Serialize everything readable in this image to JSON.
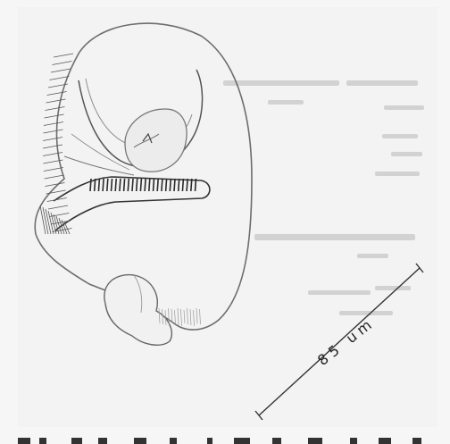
{
  "figure": {
    "scale_bar_label": "85 um"
  }
}
